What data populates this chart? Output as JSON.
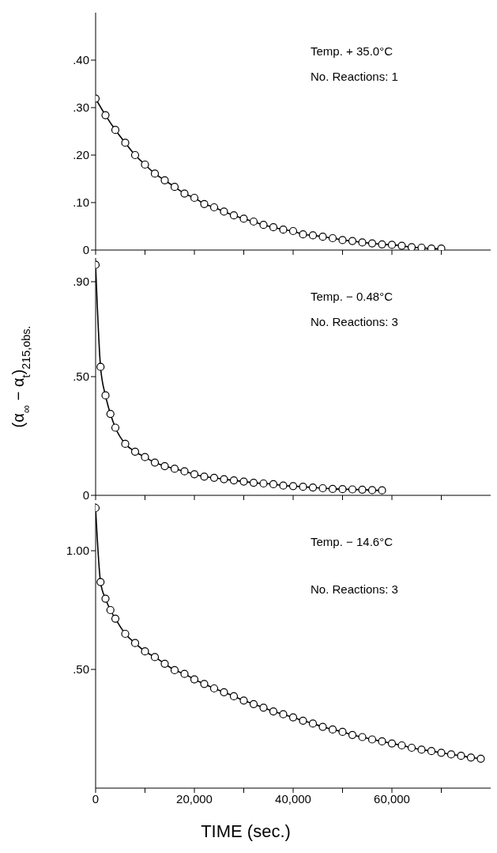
{
  "chart_data": [
    {
      "type": "line",
      "color": "#000000",
      "marker": "circle",
      "x": [
        0,
        2000,
        4000,
        6000,
        8000,
        10000,
        12000,
        14000,
        16000,
        18000,
        20000,
        22000,
        24000,
        26000,
        28000,
        30000,
        32000,
        34000,
        36000,
        38000,
        40000,
        42000,
        44000,
        46000,
        48000,
        50000,
        52000,
        54000,
        56000,
        58000,
        60000,
        62000,
        64000,
        66000,
        68000,
        70000
      ],
      "values": [
        0.319,
        0.284,
        0.253,
        0.226,
        0.2,
        0.18,
        0.161,
        0.147,
        0.133,
        0.119,
        0.11,
        0.097,
        0.09,
        0.081,
        0.073,
        0.066,
        0.06,
        0.053,
        0.048,
        0.043,
        0.04,
        0.033,
        0.031,
        0.028,
        0.025,
        0.021,
        0.019,
        0.016,
        0.014,
        0.012,
        0.011,
        0.009,
        0.006,
        0.005,
        0.003,
        0.003
      ],
      "xlim": [
        0,
        80000
      ],
      "xticks": [
        {
          "value": 0,
          "label": null
        },
        {
          "value": 10000,
          "label": null
        },
        {
          "value": 20000,
          "label": null
        },
        {
          "value": 30000,
          "label": null
        },
        {
          "value": 40000,
          "label": null
        },
        {
          "value": 50000,
          "label": null
        },
        {
          "value": 60000,
          "label": null
        },
        {
          "value": 70000,
          "label": null
        }
      ],
      "ylim": [
        0,
        0.5
      ],
      "yticks": [
        0,
        {
          "value": 0.1,
          "label": ".10"
        },
        {
          "value": 0.2,
          "label": ".20"
        },
        {
          "value": 0.3,
          "label": ".30"
        },
        {
          "value": 0.4,
          "label": ".40"
        }
      ],
      "tick_labels": "y",
      "annotations": [
        "Temp. + 35.0°C",
        "No. Reactions: 1"
      ]
    },
    {
      "type": "line",
      "color": "#000000",
      "marker": "circle",
      "x": [
        0,
        1000,
        2000,
        3000,
        4000,
        6000,
        8000,
        10000,
        12000,
        14000,
        16000,
        18000,
        20000,
        22000,
        24000,
        26000,
        28000,
        30000,
        32000,
        34000,
        36000,
        38000,
        40000,
        42000,
        44000,
        46000,
        48000,
        50000,
        52000,
        54000,
        56000,
        58000
      ],
      "values": [
        0.971,
        0.541,
        0.421,
        0.343,
        0.285,
        0.217,
        0.184,
        0.161,
        0.138,
        0.123,
        0.112,
        0.101,
        0.089,
        0.079,
        0.074,
        0.068,
        0.063,
        0.058,
        0.053,
        0.05,
        0.047,
        0.041,
        0.039,
        0.036,
        0.033,
        0.03,
        0.027,
        0.026,
        0.025,
        0.024,
        0.022,
        0.021
      ],
      "xlim": [
        0,
        80000
      ],
      "xticks": [
        {
          "value": 0,
          "label": null
        },
        {
          "value": 10000,
          "label": null
        },
        {
          "value": 20000,
          "label": null
        },
        {
          "value": 30000,
          "label": null
        },
        {
          "value": 40000,
          "label": null
        },
        {
          "value": 50000,
          "label": null
        },
        {
          "value": 60000,
          "label": null
        },
        {
          "value": 70000,
          "label": null
        }
      ],
      "ylim": [
        0,
        1.0
      ],
      "yticks": [
        0,
        {
          "value": 0.5,
          "label": ".50"
        },
        {
          "value": 0.9,
          "label": ".90"
        }
      ],
      "tick_labels": "y",
      "ylabel": "(α$_{∞}$ − α$_{t}$)$_{215,obs.}$",
      "annotations": [
        "Temp. − 0.48°C",
        "No. Reactions: 3"
      ]
    },
    {
      "type": "line",
      "color": "#000000",
      "marker": "circle",
      "x": [
        0,
        1000,
        2000,
        3000,
        4000,
        6000,
        8000,
        10000,
        12000,
        14000,
        16000,
        18000,
        20000,
        22000,
        24000,
        26000,
        28000,
        30000,
        32000,
        34000,
        36000,
        38000,
        40000,
        42000,
        44000,
        46000,
        48000,
        50000,
        52000,
        54000,
        56000,
        58000,
        60000,
        62000,
        64000,
        66000,
        68000,
        70000,
        72000,
        74000,
        76000,
        78000
      ],
      "values": [
        1.18,
        0.868,
        0.798,
        0.75,
        0.714,
        0.65,
        0.611,
        0.576,
        0.552,
        0.524,
        0.497,
        0.481,
        0.458,
        0.439,
        0.42,
        0.404,
        0.387,
        0.369,
        0.354,
        0.339,
        0.323,
        0.311,
        0.298,
        0.284,
        0.272,
        0.258,
        0.247,
        0.237,
        0.224,
        0.215,
        0.205,
        0.197,
        0.188,
        0.18,
        0.17,
        0.162,
        0.156,
        0.149,
        0.142,
        0.136,
        0.129,
        0.124
      ],
      "xlim": [
        0,
        80000
      ],
      "xticks": [
        0,
        {
          "value": 10000,
          "label": null
        },
        {
          "value": 20000,
          "label": "20,000"
        },
        {
          "value": 30000,
          "label": null
        },
        {
          "value": 40000,
          "label": "40,000"
        },
        {
          "value": 50000,
          "label": null
        },
        {
          "value": 60000,
          "label": "60,000"
        },
        {
          "value": 70000,
          "label": null
        }
      ],
      "ylim": [
        0,
        1.2
      ],
      "yticks": [
        {
          "value": 0.5,
          "label": ".50"
        },
        {
          "value": 1.0,
          "label": "1.00"
        }
      ],
      "xlabel": "TIME (sec.)",
      "annotations": [
        "Temp. − 14.6°C",
        "No. Reactions: 3"
      ]
    }
  ]
}
